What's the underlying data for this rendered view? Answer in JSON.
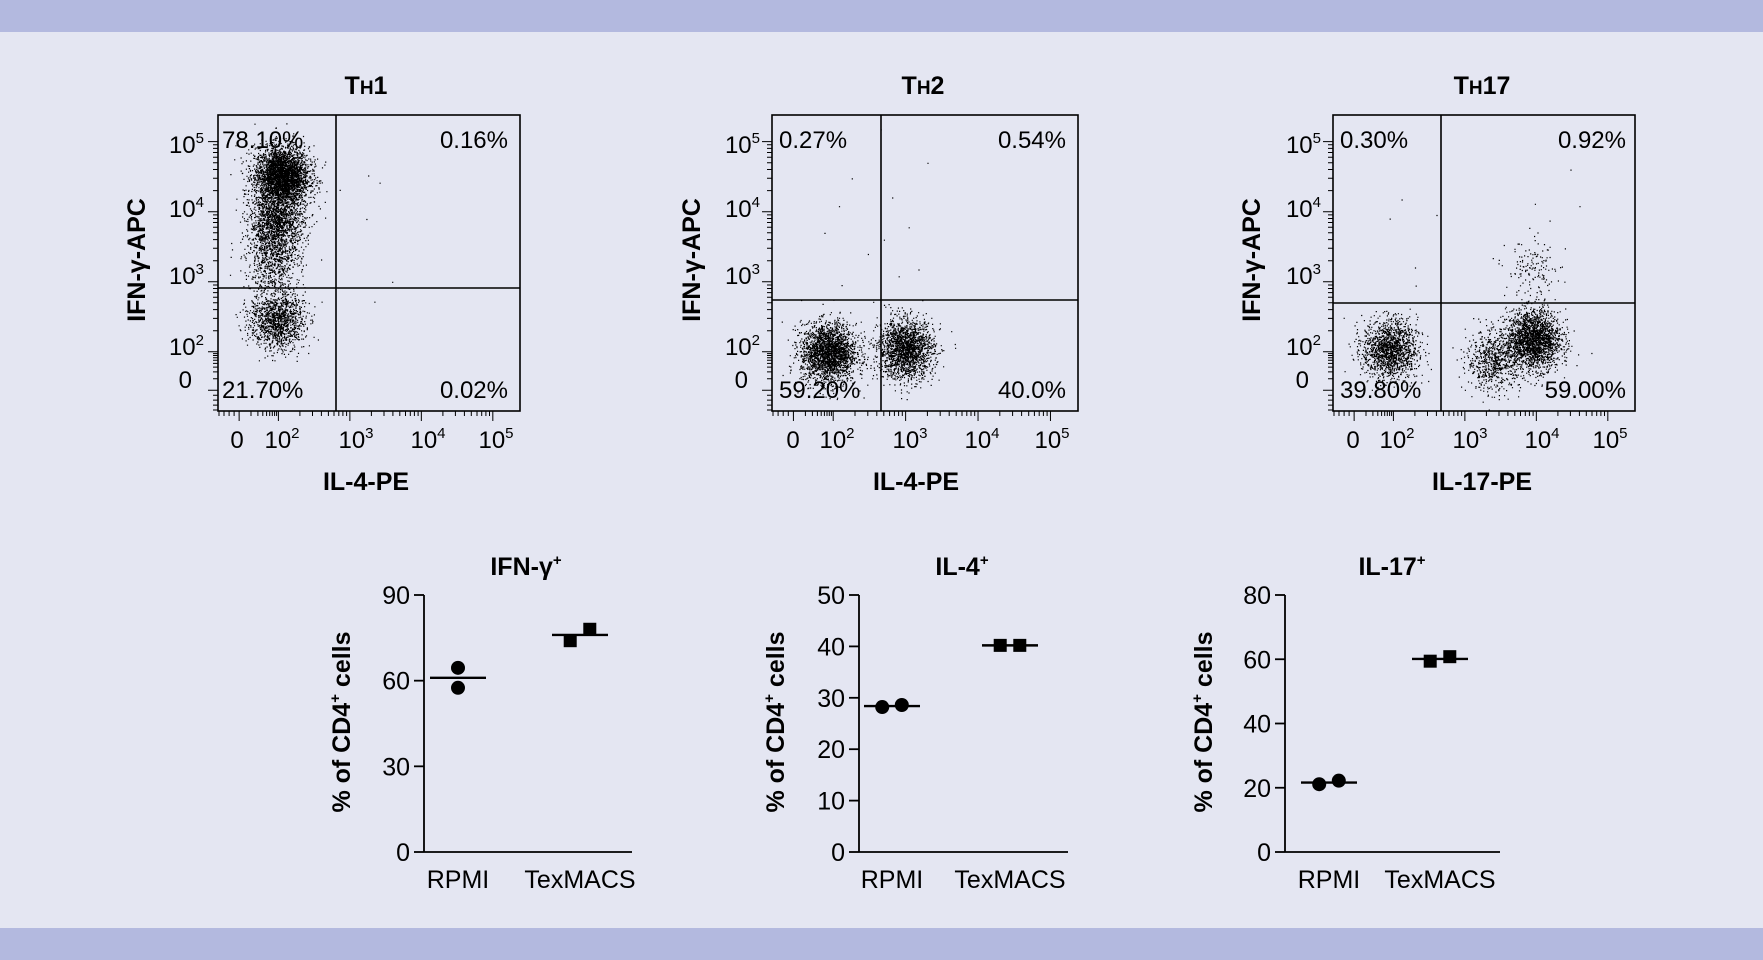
{
  "colors": {
    "background": "#e4e6f2",
    "band": "#b3b9df",
    "ink": "#000000"
  },
  "chart_data": [
    {
      "type": "scatter",
      "title_main": "T",
      "title_sub": "H",
      "title_end": "1",
      "xlabel": "IL-4-PE",
      "ylabel": "IFN-γ-APC",
      "x_ticks": [
        {
          "label": "0"
        },
        {
          "base": "10",
          "exp": "2"
        },
        {
          "base": "10",
          "exp": "3"
        },
        {
          "base": "10",
          "exp": "4"
        },
        {
          "base": "10",
          "exp": "5"
        }
      ],
      "y_ticks": [
        {
          "base": "10",
          "exp": "5"
        },
        {
          "base": "10",
          "exp": "4"
        },
        {
          "base": "10",
          "exp": "3"
        },
        {
          "base": "10",
          "exp": "2"
        },
        {
          "label": "0"
        }
      ],
      "quadrants": {
        "upper_left": "78.10%",
        "upper_right": "0.16%",
        "lower_left": "21.70%",
        "lower_right": "0.02%"
      },
      "gate": {
        "x": 660,
        "y": 1090
      },
      "clusters": [
        {
          "x": 110,
          "y": 32000,
          "count": 3400
        },
        {
          "x": 90,
          "y": 7000,
          "count": 1400
        },
        {
          "x": 70,
          "y": 2000,
          "count": 600
        },
        {
          "x": 90,
          "y": 290,
          "count": 1300
        }
      ],
      "outliers": [
        [
          1800,
          33000
        ],
        [
          2600,
          26000
        ],
        [
          1700,
          7900
        ],
        [
          2200,
          520
        ],
        [
          3900,
          1000
        ],
        [
          320,
          56000
        ],
        [
          450,
          52000
        ]
      ]
    },
    {
      "type": "scatter",
      "title_main": "T",
      "title_sub": "H",
      "title_end": "2",
      "xlabel": "IL-4-PE",
      "ylabel": "IFN-γ-APC",
      "x_ticks": [
        {
          "label": "0"
        },
        {
          "base": "10",
          "exp": "2"
        },
        {
          "base": "10",
          "exp": "3"
        },
        {
          "base": "10",
          "exp": "4"
        },
        {
          "base": "10",
          "exp": "5"
        }
      ],
      "y_ticks": [
        {
          "base": "10",
          "exp": "5"
        },
        {
          "base": "10",
          "exp": "4"
        },
        {
          "base": "10",
          "exp": "3"
        },
        {
          "base": "10",
          "exp": "2"
        },
        {
          "label": "0"
        }
      ],
      "quadrants": {
        "upper_left": "0.27%",
        "upper_right": "0.54%",
        "lower_left": "59.20%",
        "lower_right": "40.0%"
      },
      "gate": {
        "x": 440,
        "y": 730
      },
      "clusters": [
        {
          "x": 75,
          "y": 95,
          "count": 2300
        },
        {
          "x": 1000,
          "y": 110,
          "count": 1900
        }
      ],
      "outliers": [
        [
          450,
          150000
        ],
        [
          120,
          12000
        ],
        [
          180,
          30000
        ],
        [
          650,
          16000
        ],
        [
          1100,
          6000
        ],
        [
          1500,
          1500
        ],
        [
          800,
          1200
        ],
        [
          60,
          5000
        ],
        [
          300,
          2500
        ],
        [
          2000,
          50000
        ],
        [
          130,
          900
        ],
        [
          500,
          4000
        ]
      ]
    },
    {
      "type": "scatter",
      "title_main": "T",
      "title_sub": "H",
      "title_end": "17",
      "xlabel": "IL-17-PE",
      "ylabel": "IFN-γ-APC",
      "x_ticks": [
        {
          "label": "0"
        },
        {
          "base": "10",
          "exp": "2"
        },
        {
          "base": "10",
          "exp": "3"
        },
        {
          "base": "10",
          "exp": "4"
        },
        {
          "base": "10",
          "exp": "5"
        }
      ],
      "y_ticks": [
        {
          "base": "10",
          "exp": "5"
        },
        {
          "base": "10",
          "exp": "4"
        },
        {
          "base": "10",
          "exp": "3"
        },
        {
          "base": "10",
          "exp": "2"
        },
        {
          "label": "0"
        }
      ],
      "quadrants": {
        "upper_left": "0.30%",
        "upper_right": "0.92%",
        "lower_left": "39.80%",
        "lower_right": "59.00%"
      },
      "gate": {
        "x": 440,
        "y": 660
      },
      "clusters": [
        {
          "x": 80,
          "y": 110,
          "count": 1500
        },
        {
          "x": 9000,
          "y": 150,
          "count": 2100
        },
        {
          "x": 2500,
          "y": 60,
          "count": 700
        },
        {
          "x": 9000,
          "y": 1500,
          "count": 140
        }
      ],
      "outliers": [
        [
          30000,
          40000
        ],
        [
          40000,
          12000
        ],
        [
          9500,
          13000
        ],
        [
          130,
          15000
        ],
        [
          400,
          9000
        ],
        [
          80,
          8000
        ],
        [
          200,
          1600
        ],
        [
          25000,
          3000
        ]
      ]
    },
    {
      "type": "scatter",
      "title_main": "IFN-γ",
      "title_sup": "+",
      "ylabel_pre": "% of CD4",
      "ylabel_sup": "+",
      "ylabel_post": " cells",
      "ylim": [
        0,
        90
      ],
      "y_ticks": [
        0,
        30,
        60,
        90
      ],
      "categories": [
        "RPMI",
        "TexMACS"
      ],
      "groups": [
        {
          "category": "RPMI",
          "marker": "circle",
          "points": [
            [
              0,
              64.5
            ],
            [
              0,
              57.5
            ]
          ],
          "mean": 61
        },
        {
          "category": "TexMACS",
          "marker": "square",
          "points": [
            [
              -0.12,
              74
            ],
            [
              0.12,
              78
            ]
          ],
          "mean": 76
        }
      ]
    },
    {
      "type": "scatter",
      "title_main": "IL-4",
      "title_sup": "+",
      "ylabel_pre": "% of CD4",
      "ylabel_sup": "+",
      "ylabel_post": " cells",
      "ylim": [
        0,
        50
      ],
      "y_ticks": [
        0,
        10,
        20,
        30,
        40,
        50
      ],
      "categories": [
        "RPMI",
        "TexMACS"
      ],
      "groups": [
        {
          "category": "RPMI",
          "marker": "circle",
          "points": [
            [
              -0.12,
              28.2
            ],
            [
              0.12,
              28.6
            ]
          ],
          "mean": 28.4
        },
        {
          "category": "TexMACS",
          "marker": "square",
          "points": [
            [
              -0.12,
              40.2
            ],
            [
              0.12,
              40.2
            ]
          ],
          "mean": 40.2
        }
      ]
    },
    {
      "type": "scatter",
      "title_main": "IL-17",
      "title_sup": "+",
      "ylabel_pre": "% of CD4",
      "ylabel_sup": "+",
      "ylabel_post": " cells",
      "ylim": [
        0,
        80
      ],
      "y_ticks": [
        0,
        20,
        40,
        60,
        80
      ],
      "categories": [
        "RPMI",
        "TexMACS"
      ],
      "groups": [
        {
          "category": "RPMI",
          "marker": "circle",
          "points": [
            [
              -0.12,
              21.1
            ],
            [
              0.12,
              22.2
            ]
          ],
          "mean": 21.6
        },
        {
          "category": "TexMACS",
          "marker": "square",
          "points": [
            [
              -0.12,
              59.4
            ],
            [
              0.12,
              60.8
            ]
          ],
          "mean": 60.1
        }
      ]
    }
  ]
}
